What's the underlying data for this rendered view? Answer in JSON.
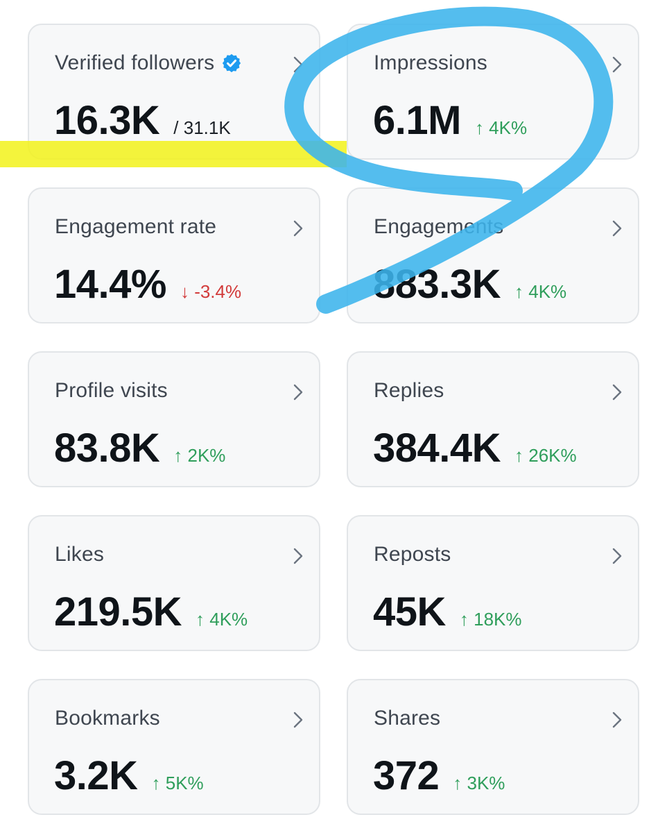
{
  "colors": {
    "positive": "#2f9e5b",
    "negative": "#d23b3b",
    "verified_badge": "#1d9bf0",
    "card_background": "#f7f8f9",
    "card_border": "#e2e5e8",
    "highlighter_yellow": "#f2f21a",
    "marker_blue": "#3cb4ec"
  },
  "cards": {
    "verified_followers": {
      "label": "Verified followers",
      "value": "16.3K",
      "total": "/ 31.1K",
      "icon": "verified-badge-icon"
    },
    "impressions": {
      "label": "Impressions",
      "value": "6.1M",
      "change": "↑ 4K%",
      "direction": "up"
    },
    "engagement_rate": {
      "label": "Engagement rate",
      "value": "14.4%",
      "change": "↓ -3.4%",
      "direction": "down"
    },
    "engagements": {
      "label": "Engagements",
      "value": "883.3K",
      "change": "↑ 4K%",
      "direction": "up"
    },
    "profile_visits": {
      "label": "Profile visits",
      "value": "83.8K",
      "change": "↑ 2K%",
      "direction": "up"
    },
    "replies": {
      "label": "Replies",
      "value": "384.4K",
      "change": "↑ 26K%",
      "direction": "up"
    },
    "likes": {
      "label": "Likes",
      "value": "219.5K",
      "change": "↑ 4K%",
      "direction": "up"
    },
    "reposts": {
      "label": "Reposts",
      "value": "45K",
      "change": "↑ 18K%",
      "direction": "up"
    },
    "bookmarks": {
      "label": "Bookmarks",
      "value": "3.2K",
      "change": "↑ 5K%",
      "direction": "up"
    },
    "shares": {
      "label": "Shares",
      "value": "372",
      "change": "↑ 3K%",
      "direction": "up"
    }
  }
}
